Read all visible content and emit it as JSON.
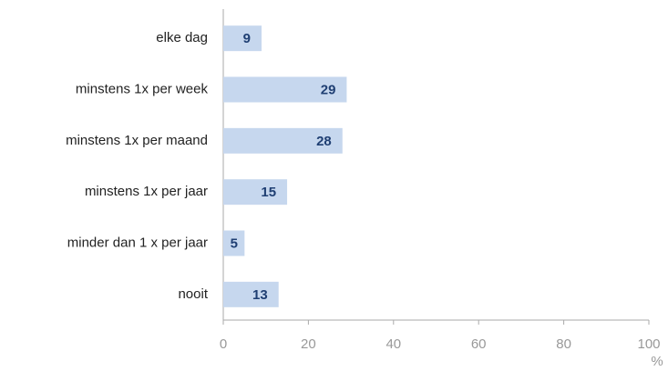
{
  "chart_data": {
    "type": "bar",
    "orientation": "horizontal",
    "categories": [
      "elke dag",
      "minstens 1x per week",
      "minstens 1x per maand",
      "minstens 1x per jaar",
      "minder dan 1 x per jaar",
      "nooit"
    ],
    "values": [
      9,
      29,
      28,
      15,
      5,
      13
    ],
    "color": "#c6d7ee",
    "x_label": "%",
    "xlim": [
      0,
      100
    ],
    "xticks": [
      0,
      20,
      40,
      60,
      80,
      100
    ],
    "grid": false
  }
}
